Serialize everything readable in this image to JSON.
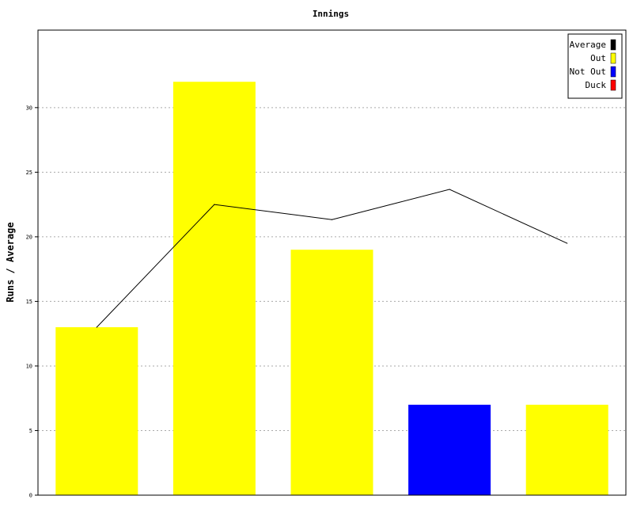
{
  "chart_data": {
    "type": "bar",
    "title": "Innings",
    "xlabel": "",
    "ylabel": "Runs / Average",
    "ylim": [
      0,
      36
    ],
    "yticks": [
      0,
      5,
      10,
      15,
      20,
      25,
      30
    ],
    "grid": true,
    "legend_position": "top-right",
    "legend": [
      {
        "label": "Average",
        "color": "#000000"
      },
      {
        "label": "Out",
        "color": "#ffff00"
      },
      {
        "label": "Not Out",
        "color": "#0000ff"
      },
      {
        "label": "Duck",
        "color": "#ff0000"
      }
    ],
    "bars": [
      {
        "value": 13,
        "status": "Out",
        "color": "#ffff00"
      },
      {
        "value": 32,
        "status": "Out",
        "color": "#ffff00"
      },
      {
        "value": 19,
        "status": "Out",
        "color": "#ffff00"
      },
      {
        "value": 7,
        "status": "Not Out",
        "color": "#0000ff"
      },
      {
        "value": 7,
        "status": "Out",
        "color": "#ffff00"
      }
    ],
    "average_line": {
      "name": "Average",
      "color": "#000000",
      "values": [
        13,
        22.5,
        21.33,
        23.67,
        19.5
      ]
    }
  }
}
